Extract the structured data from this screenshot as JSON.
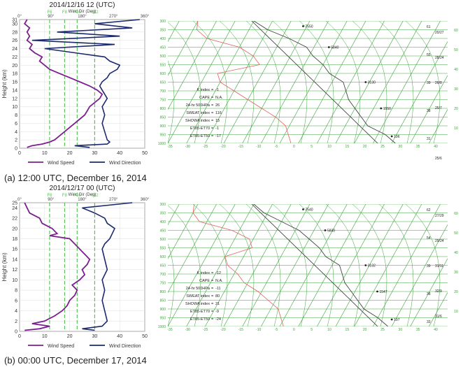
{
  "figure_captions": [
    "(a) 12:00 UTC, December 16, 2014",
    "(b) 00:00 UTC, December 17, 2014"
  ],
  "chart_data": [
    {
      "type": "line",
      "panel": "a",
      "title": "2014/12/16  12 (UTC)",
      "top_axis_label": "Wind Dir (Deg)",
      "top_ticks": [
        "0°",
        "90°",
        "180°",
        "270°",
        "360°"
      ],
      "threshold_labels": [
        "F6",
        "F8",
        "F10",
        "F12"
      ],
      "thresholds_ms": [
        12,
        18,
        23,
        30
      ],
      "ylabel": "Height (km)",
      "ylim": [
        0,
        31
      ],
      "yticks": [
        "0",
        "2",
        "4",
        "6",
        "8",
        "10",
        "12",
        "14",
        "16",
        "18",
        "20",
        "22",
        "24",
        "26",
        "28",
        "30",
        "31"
      ],
      "xlim": [
        0,
        50
      ],
      "xticks": [
        "0",
        "10",
        "20",
        "30",
        "40",
        "50"
      ],
      "xlabel": "Wind Speed (m/s)",
      "legend": [
        "Wind Speed",
        "Wind Direction"
      ],
      "colors": {
        "speed": "#7b1f8f",
        "direction": "#1c2a6b",
        "threshold": "#5fbf5f"
      },
      "series": [
        {
          "key": "speed",
          "points": [
            [
              3,
              0.2
            ],
            [
              5,
              0.6
            ],
            [
              9,
              1
            ],
            [
              12,
              1.5
            ],
            [
              14,
              2
            ],
            [
              16,
              3
            ],
            [
              18,
              4
            ],
            [
              20,
              5
            ],
            [
              22,
              6
            ],
            [
              24,
              7
            ],
            [
              26,
              8
            ],
            [
              27,
              9
            ],
            [
              28,
              10
            ],
            [
              30,
              11
            ],
            [
              32,
              12
            ],
            [
              33,
              13
            ],
            [
              31,
              14
            ],
            [
              28,
              15
            ],
            [
              24,
              16
            ],
            [
              20,
              17
            ],
            [
              16,
              18
            ],
            [
              12,
              19
            ],
            [
              10,
              20
            ],
            [
              8,
              21
            ],
            [
              9,
              22
            ],
            [
              6,
              23
            ],
            [
              4,
              24
            ],
            [
              5,
              25
            ],
            [
              3,
              26
            ],
            [
              4,
              27
            ],
            [
              3,
              28
            ],
            [
              4,
              29
            ],
            [
              2,
              30
            ],
            [
              3,
              31
            ]
          ]
        },
        {
          "key": "direction",
          "points": [
            [
              28,
              0.2
            ],
            [
              22,
              0.6
            ],
            [
              35,
              1
            ],
            [
              36,
              1.5
            ],
            [
              35,
              2
            ],
            [
              34,
              4
            ],
            [
              33,
              6
            ],
            [
              34,
              8
            ],
            [
              33,
              10
            ],
            [
              35,
              12
            ],
            [
              34,
              13
            ],
            [
              33,
              14
            ],
            [
              32,
              15
            ],
            [
              33,
              16
            ],
            [
              35,
              17
            ],
            [
              36,
              18
            ],
            [
              39,
              19
            ],
            [
              40,
              20
            ],
            [
              36,
              21
            ],
            [
              34,
              22
            ],
            [
              22,
              23
            ],
            [
              10,
              24
            ],
            [
              38,
              25
            ],
            [
              5,
              26
            ],
            [
              40,
              27
            ],
            [
              15,
              28
            ],
            [
              45,
              29
            ],
            [
              30,
              30
            ],
            [
              48,
              31
            ]
          ]
        }
      ]
    },
    {
      "type": "skewt",
      "panel": "a",
      "pressure_labels": [
        "300",
        "350",
        "400",
        "450",
        "500",
        "550",
        "600",
        "650",
        "700",
        "750",
        "800",
        "850",
        "900",
        "950",
        "1000"
      ],
      "height_labels": [
        "60",
        "50",
        "40",
        "30",
        "20",
        "10"
      ],
      "temp_ticks": [
        "-35",
        "-30",
        "-25",
        "-20",
        "-15",
        "-10",
        "-5",
        "0",
        "5",
        "10",
        "15",
        "20",
        "25",
        "30",
        "35",
        "40"
      ],
      "level_labels": [
        {
          "text": "7550",
          "p": 330,
          "t": -16
        },
        {
          "text": "5840",
          "p": 450,
          "t": -6
        },
        {
          "text": "3130",
          "p": 650,
          "t": 9
        },
        {
          "text": "1550",
          "p": 800,
          "t": 17
        },
        {
          "text": "196",
          "p": 960,
          "t": 24
        }
      ],
      "indices": [
        {
          "label": "K index",
          "value": "-1"
        },
        {
          "label": "CAPE",
          "value": "N.A."
        },
        {
          "label": "24-hr 500HPa",
          "value": "26"
        },
        {
          "label": "SWEAT index",
          "value": "116"
        },
        {
          "label": "SHOWA index",
          "value": "15"
        },
        {
          "label": "ET85-ET70",
          "value": "-1"
        },
        {
          "label": "ET85-ET50",
          "value": "-17"
        }
      ],
      "wind_labels": [
        "20/27",
        "28/24",
        "26/8",
        "25/7",
        "",
        "25/6"
      ],
      "station_labels": [
        "61",
        "55",
        "39",
        "38",
        "31"
      ],
      "temperature": [
        [
          300,
          -30
        ],
        [
          350,
          -25
        ],
        [
          400,
          -18
        ],
        [
          450,
          -12
        ],
        [
          500,
          -9
        ],
        [
          550,
          -5
        ],
        [
          600,
          -2
        ],
        [
          650,
          3
        ],
        [
          700,
          5
        ],
        [
          750,
          7
        ],
        [
          800,
          10
        ],
        [
          850,
          13
        ],
        [
          900,
          16
        ],
        [
          950,
          22
        ],
        [
          1000,
          26
        ]
      ],
      "dewpoint": [
        [
          300,
          -45
        ],
        [
          350,
          -44
        ],
        [
          400,
          -40
        ],
        [
          450,
          -30
        ],
        [
          500,
          -25
        ],
        [
          550,
          -22
        ],
        [
          600,
          -32
        ],
        [
          650,
          -30
        ],
        [
          700,
          -25
        ],
        [
          750,
          -20
        ],
        [
          800,
          -15
        ],
        [
          850,
          -10
        ],
        [
          900,
          -6
        ],
        [
          950,
          -4
        ],
        [
          1000,
          -2
        ]
      ]
    },
    {
      "type": "line",
      "panel": "b",
      "title": "2014/12/17  00 (UTC)",
      "top_axis_label": "Wind Dir (Deg)",
      "top_ticks": [
        "0°",
        "90°",
        "180°",
        "270°",
        "360°"
      ],
      "threshold_labels": [
        "F6",
        "F8",
        "F10",
        "F12"
      ],
      "thresholds_ms": [
        12,
        18,
        23,
        30
      ],
      "ylabel": "Height (km)",
      "ylim": [
        0,
        25
      ],
      "yticks": [
        "0",
        "2",
        "4",
        "6",
        "8",
        "10",
        "12",
        "14",
        "16",
        "18",
        "20",
        "22",
        "24",
        "25"
      ],
      "xlim": [
        0,
        50
      ],
      "xticks": [
        "0",
        "10",
        "20",
        "30",
        "40",
        "50"
      ],
      "xlabel": "Wind Speed (m/s)",
      "legend": [
        "Wind Speed",
        "Wind Direction"
      ],
      "colors": {
        "speed": "#7b1f8f",
        "direction": "#1c2a6b",
        "threshold": "#5fbf5f"
      },
      "series": [
        {
          "key": "speed",
          "points": [
            [
              2,
              0.2
            ],
            [
              8,
              0.5
            ],
            [
              12,
              1
            ],
            [
              5,
              1.5
            ],
            [
              10,
              2
            ],
            [
              14,
              3
            ],
            [
              17,
              4
            ],
            [
              19,
              5
            ],
            [
              20,
              6
            ],
            [
              22,
              7
            ],
            [
              23,
              8
            ],
            [
              21,
              9
            ],
            [
              24,
              10
            ],
            [
              26,
              11
            ],
            [
              25,
              12
            ],
            [
              27,
              13
            ],
            [
              28,
              14
            ],
            [
              26,
              15
            ],
            [
              24,
              16
            ],
            [
              22,
              17
            ],
            [
              20,
              18
            ],
            [
              12,
              18.6
            ],
            [
              15,
              19
            ],
            [
              13,
              20
            ],
            [
              9,
              21
            ],
            [
              8,
              22
            ],
            [
              4,
              23
            ],
            [
              3,
              24
            ],
            [
              2,
              25
            ]
          ]
        },
        {
          "key": "direction",
          "points": [
            [
              30,
              0.2
            ],
            [
              25,
              0.5
            ],
            [
              33,
              1
            ],
            [
              35,
              2
            ],
            [
              34,
              4
            ],
            [
              33,
              6
            ],
            [
              34,
              8
            ],
            [
              33,
              10
            ],
            [
              35,
              12
            ],
            [
              34,
              14
            ],
            [
              33,
              16
            ],
            [
              34,
              17
            ],
            [
              36,
              18
            ],
            [
              37,
              19
            ],
            [
              38,
              20
            ],
            [
              35,
              21
            ],
            [
              34,
              22
            ],
            [
              30,
              23
            ],
            [
              25,
              24
            ],
            [
              45,
              25
            ]
          ]
        }
      ]
    },
    {
      "type": "skewt",
      "panel": "b",
      "pressure_labels": [
        "300",
        "350",
        "400",
        "450",
        "500",
        "550",
        "600",
        "650",
        "700",
        "750",
        "800",
        "850",
        "900",
        "950",
        "1000"
      ],
      "height_labels": [
        "60",
        "50",
        "40",
        "30",
        "20",
        "10"
      ],
      "temp_ticks": [
        "-35",
        "-30",
        "-25",
        "-20",
        "-15",
        "-10",
        "-5",
        "0",
        "5",
        "10",
        "15",
        "20",
        "25",
        "30",
        "35",
        "40"
      ],
      "level_labels": [
        {
          "text": "7540",
          "p": 330,
          "t": -16
        },
        {
          "text": "5830",
          "p": 450,
          "t": -7
        },
        {
          "text": "3132",
          "p": 650,
          "t": 9
        },
        {
          "text": "1547",
          "p": 800,
          "t": 16
        },
        {
          "text": "197",
          "p": 960,
          "t": 24
        }
      ],
      "indices": [
        {
          "label": "K index",
          "value": "-12"
        },
        {
          "label": "CAPE",
          "value": "N.A."
        },
        {
          "label": "24-hr 500HPa",
          "value": "-11"
        },
        {
          "label": "SWEAT index",
          "value": "80"
        },
        {
          "label": "SHOWA index",
          "value": "21"
        },
        {
          "label": "ET85-ET70",
          "value": "-9"
        },
        {
          "label": "ET85-ET50",
          "value": "-24"
        }
      ],
      "wind_labels": [
        "27/29",
        "29/24",
        "31/11",
        "32/9",
        "31/6"
      ],
      "station_labels": [
        "62",
        "54",
        "39",
        "38",
        "33"
      ],
      "temperature": [
        [
          300,
          -30
        ],
        [
          350,
          -26
        ],
        [
          400,
          -20
        ],
        [
          450,
          -14
        ],
        [
          500,
          -10
        ],
        [
          550,
          -6
        ],
        [
          600,
          -3
        ],
        [
          650,
          2
        ],
        [
          700,
          4
        ],
        [
          750,
          6
        ],
        [
          800,
          9
        ],
        [
          850,
          12
        ],
        [
          900,
          15
        ],
        [
          950,
          20
        ],
        [
          1000,
          24
        ]
      ],
      "dewpoint": [
        [
          300,
          -46
        ],
        [
          350,
          -45
        ],
        [
          400,
          -42
        ],
        [
          450,
          -32
        ],
        [
          500,
          -26
        ],
        [
          550,
          -24
        ],
        [
          600,
          -30
        ],
        [
          650,
          -28
        ],
        [
          700,
          -24
        ],
        [
          750,
          -21
        ],
        [
          800,
          -16
        ],
        [
          850,
          -12
        ],
        [
          900,
          -8
        ],
        [
          950,
          -6
        ],
        [
          1000,
          -4
        ]
      ]
    }
  ]
}
